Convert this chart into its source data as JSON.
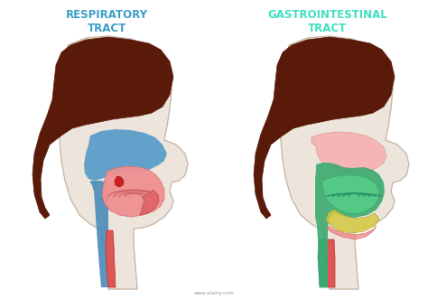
{
  "title_left": "RESPIRATORY\nTRACT",
  "title_right": "GASTROINTESTINAL\nTRACT",
  "title_left_color": "#3a9fc8",
  "title_right_color": "#40e0c0",
  "bg_color": "#ffffff",
  "skin_color": "#ede5dc",
  "skin_outline": "#c8b8a8",
  "hair_color": "#5a1a0a",
  "blue_nasal": "#5b9ec9",
  "blue_pharynx": "#4a8ab8",
  "mouth_pink": "#f09090",
  "tongue_dark": "#e06868",
  "uvula_red": "#cc2222",
  "neck_tube_red": "#dd5555",
  "neck_tube_blue": "#4a8ab8",
  "gi_green_outer": "#3aaa70",
  "gi_green_inner": "#55cc88",
  "gi_pink_nasal": "#f0a0a0",
  "gi_yellow": "#d4c840",
  "gi_pink_lower": "#f07070",
  "gi_tube_red": "#dd5555",
  "gi_tube_green": "#3aaa70"
}
